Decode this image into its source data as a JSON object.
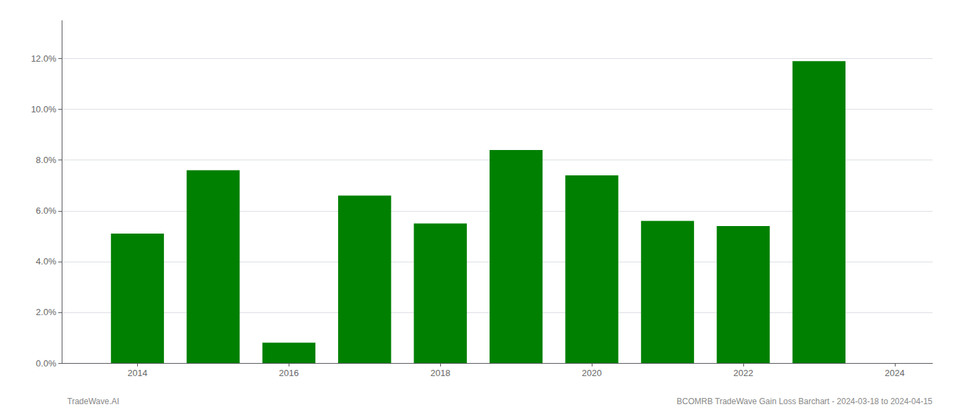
{
  "chart_data": {
    "type": "bar",
    "x": [
      2014,
      2015,
      2016,
      2017,
      2018,
      2019,
      2020,
      2021,
      2022,
      2023
    ],
    "values": [
      0.051,
      0.076,
      0.008,
      0.066,
      0.055,
      0.084,
      0.074,
      0.056,
      0.054,
      0.119
    ],
    "color": "#008000",
    "xlim": [
      2013.0,
      2024.5
    ],
    "xticks": [
      2014,
      2016,
      2018,
      2020,
      2022,
      2024
    ],
    "ylim": [
      0.0,
      0.135
    ],
    "yticks": [
      {
        "value": 0.0,
        "label": "0.0%"
      },
      {
        "value": 0.02,
        "label": "2.0%"
      },
      {
        "value": 0.04,
        "label": "4.0%"
      },
      {
        "value": 0.06,
        "label": "6.0%"
      },
      {
        "value": 0.08,
        "label": "8.0%"
      },
      {
        "value": 0.1,
        "label": "10.0%"
      },
      {
        "value": 0.12,
        "label": "12.0%"
      }
    ],
    "grid": true,
    "annotations": [
      "TradeWave.AI",
      "BCOMRB TradeWave Gain Loss Barchart - 2024-03-18 to 2024-04-15"
    ]
  }
}
